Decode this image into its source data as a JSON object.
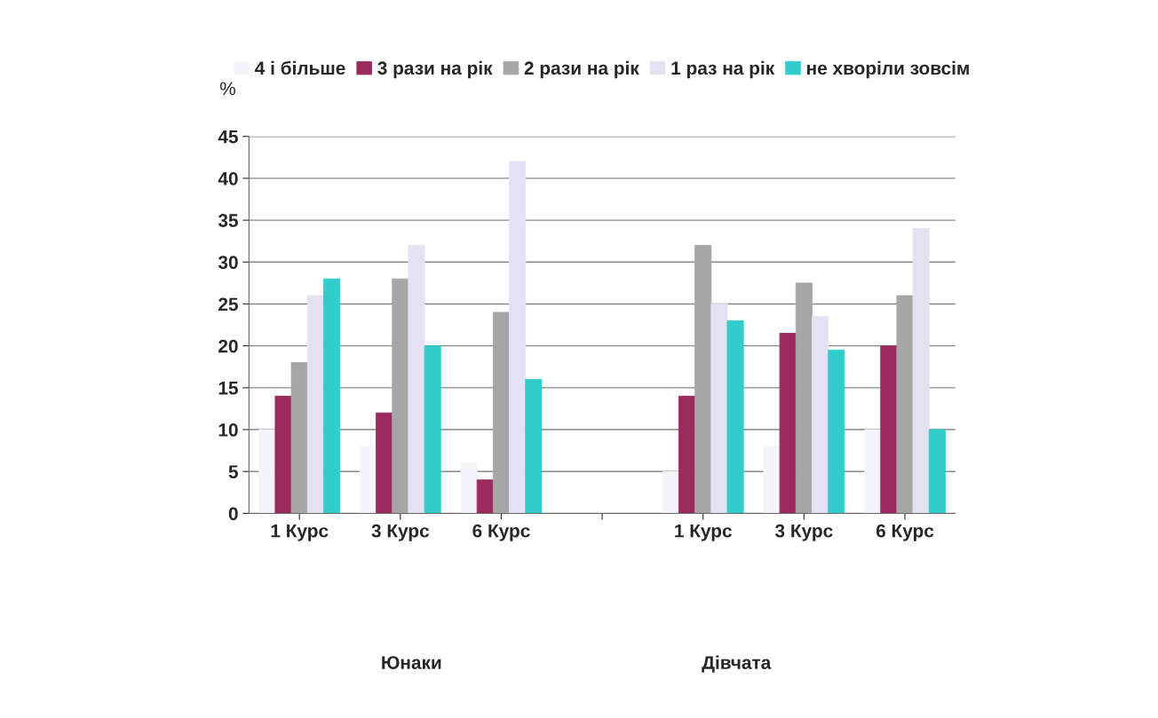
{
  "chart_data": {
    "type": "bar",
    "ylabel": "%",
    "categories": [
      "1 Курс",
      "3 Курс",
      "6 Курс",
      null,
      "1 Курс",
      "3 Курс",
      "6 Курс"
    ],
    "series": [
      {
        "name": "4 і більше",
        "color": "#f4f4fa",
        "values": [
          10,
          8,
          6,
          null,
          5,
          8,
          10
        ]
      },
      {
        "name": "3 рази на рік",
        "color": "#9b2a5e",
        "values": [
          14,
          12,
          4,
          null,
          14,
          21.5,
          20
        ]
      },
      {
        "name": "2 рази на рік",
        "color": "#a6a6a6",
        "values": [
          18,
          28,
          24,
          null,
          32,
          27.5,
          26
        ]
      },
      {
        "name": "1 раз на рік",
        "color": "#e4e2f2",
        "values": [
          26,
          32,
          42,
          null,
          25,
          23.5,
          34
        ]
      },
      {
        "name": "не хворіли зовсім",
        "color": "#33cccc",
        "values": [
          28,
          20,
          16,
          null,
          23,
          19.5,
          10
        ]
      }
    ],
    "ylim": [
      0,
      45
    ],
    "yticks": [
      0,
      5,
      10,
      15,
      20,
      25,
      30,
      35,
      40,
      45
    ],
    "grid": "y",
    "legend": "top",
    "annotations": [
      "Юнаки",
      "Дівчата"
    ]
  }
}
